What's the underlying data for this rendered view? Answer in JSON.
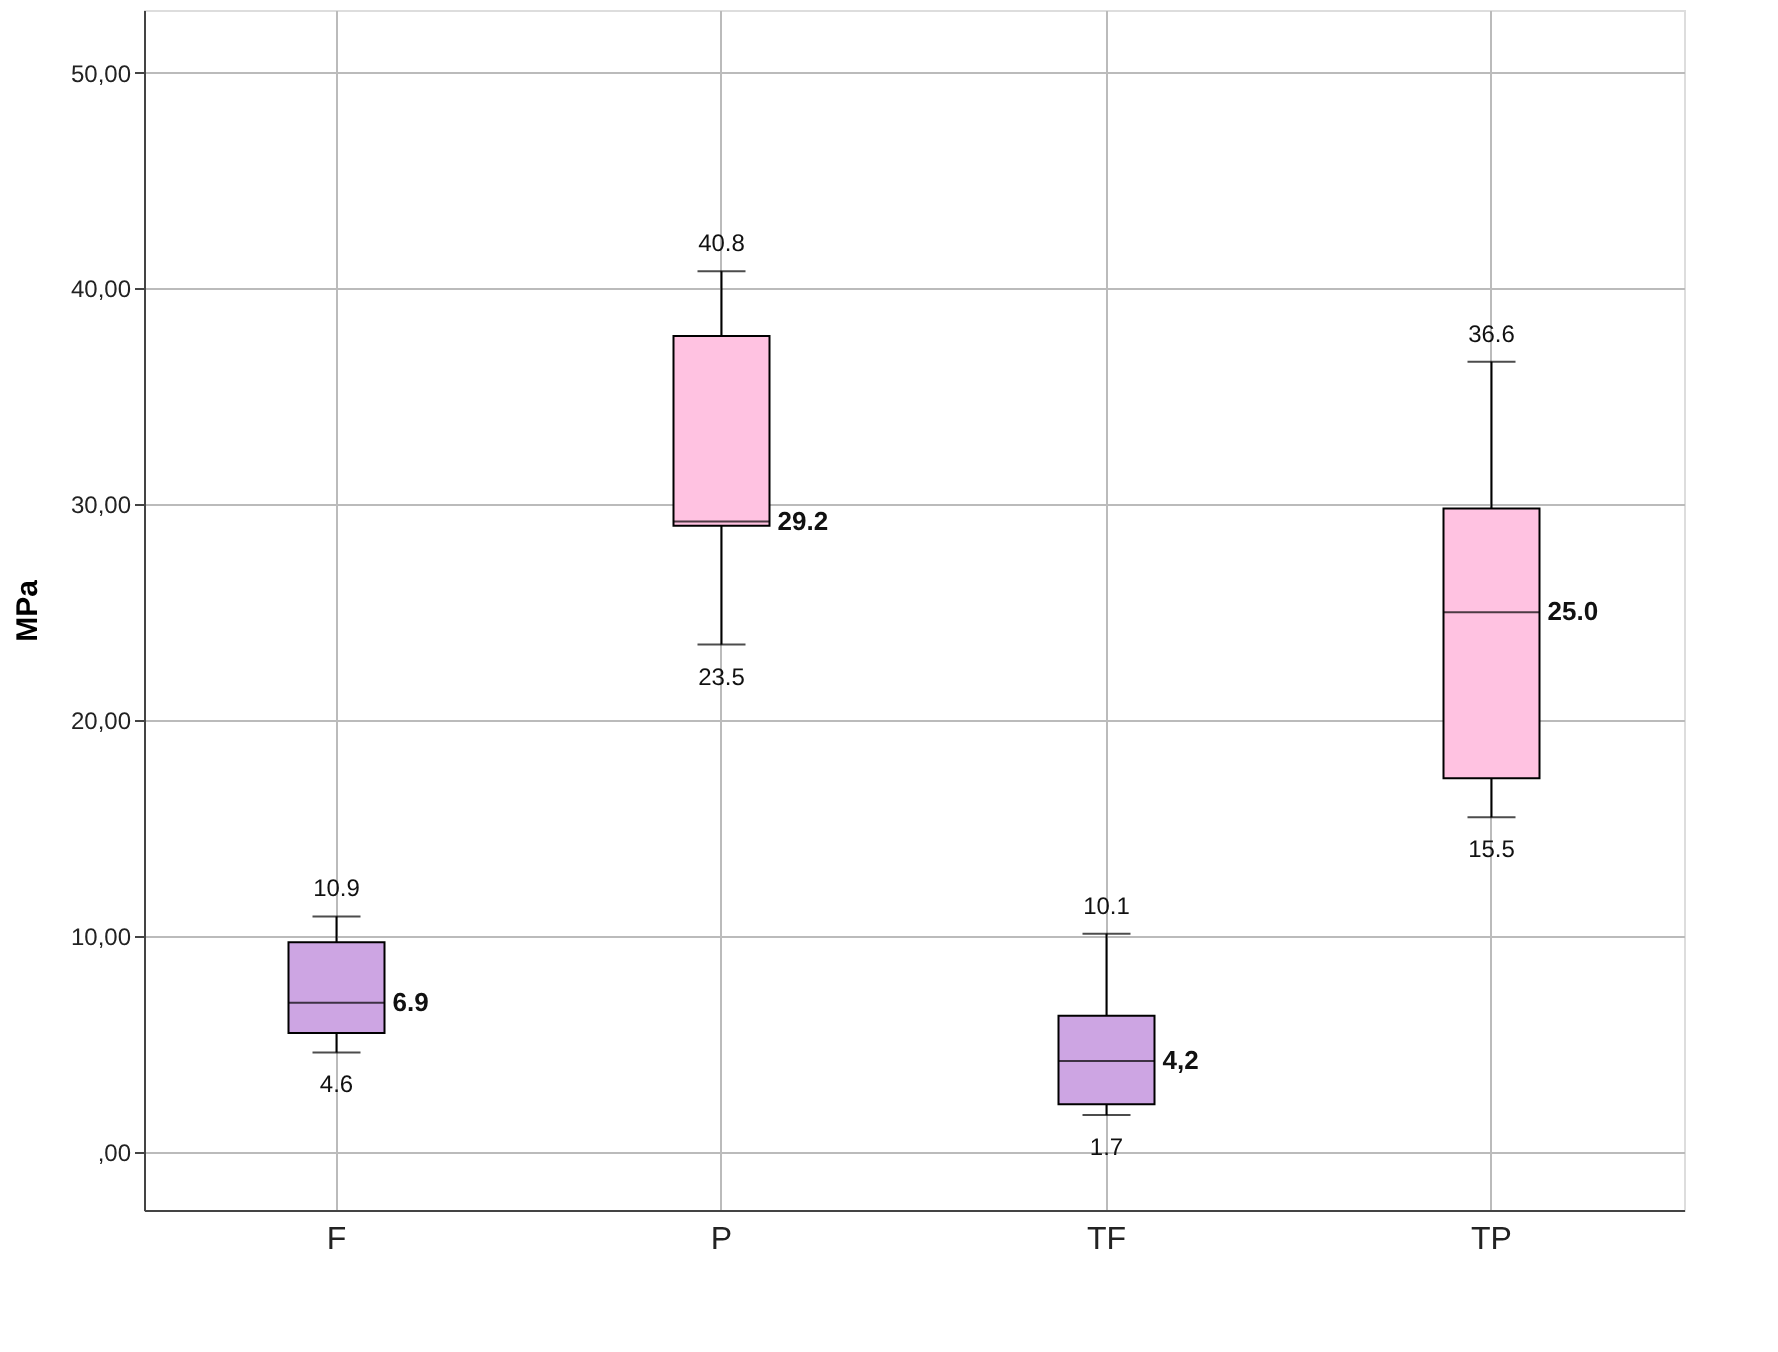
{
  "chart_data": {
    "type": "box",
    "ylabel": "MPa",
    "categories": [
      "F",
      "P",
      "TF",
      "TP"
    ],
    "colors": [
      "#cda5e3",
      "#ffc2e1",
      "#cda5e3",
      "#ffc2e1"
    ],
    "boxes": [
      {
        "low": 4.6,
        "q1": 5.5,
        "median": 6.9,
        "q3": 9.7,
        "high": 10.9
      },
      {
        "low": 23.5,
        "q1": 29.0,
        "median": 29.2,
        "q3": 37.8,
        "high": 40.8
      },
      {
        "low": 1.7,
        "q1": 2.2,
        "median": 4.2,
        "q3": 6.3,
        "high": 10.1
      },
      {
        "low": 15.5,
        "q1": 17.3,
        "median": 25.0,
        "q3": 29.8,
        "high": 36.6
      }
    ],
    "ylim": [
      -2.7,
      52.9
    ],
    "yticks": [
      {
        "value": 0,
        "label": ",00"
      },
      {
        "value": 10,
        "label": "10,00"
      },
      {
        "value": 20,
        "label": "20,00"
      },
      {
        "value": 30,
        "label": "30,00"
      },
      {
        "value": 40,
        "label": "40,00"
      },
      {
        "value": 50,
        "label": "50,00"
      }
    ],
    "grid": true,
    "annotations": [
      {
        "text": "10.9",
        "x": "F",
        "y": 10.9
      },
      {
        "text": "6.9",
        "x": "F",
        "y": 6.9
      },
      {
        "text": "4.6",
        "x": "F",
        "y": 4.6
      },
      {
        "text": "40.8",
        "x": "P",
        "y": 40.8
      },
      {
        "text": "29.2",
        "x": "P",
        "y": 29.2
      },
      {
        "text": "23.5",
        "x": "P",
        "y": 23.5
      },
      {
        "text": "10.1",
        "x": "TF",
        "y": 10.1
      },
      {
        "text": "4,2",
        "x": "TF",
        "y": 4.2
      },
      {
        "text": "1.7",
        "x": "TF",
        "y": 1.7
      },
      {
        "text": "36.6",
        "x": "TP",
        "y": 36.6
      },
      {
        "text": "25.0",
        "x": "TP",
        "y": 25.0
      },
      {
        "text": "15.5",
        "x": "TP",
        "y": 15.5
      }
    ]
  }
}
